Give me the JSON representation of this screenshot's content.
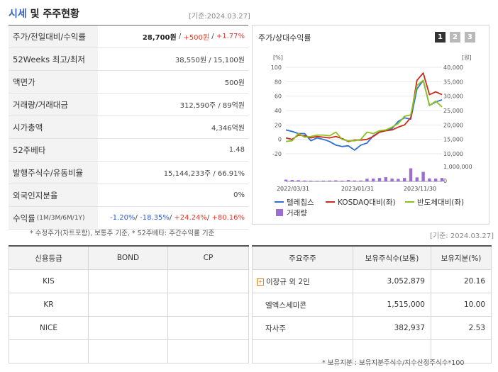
{
  "header": {
    "title_market": "시세",
    "title_rest": "및 주주현황",
    "base_date": "[기준:2024.03.27]"
  },
  "price_table": [
    {
      "label": "주가/전일대비/수익률",
      "parts": [
        {
          "t": "28,700원",
          "c": "bold"
        },
        {
          "t": " / ",
          "c": "sep"
        },
        {
          "t": "+500원",
          "c": "red"
        },
        {
          "t": " / ",
          "c": "sep"
        },
        {
          "t": "+1.77%",
          "c": "red"
        }
      ]
    },
    {
      "label": "52Weeks 최고/최저",
      "parts": [
        {
          "t": "38,550원 / 15,100원",
          "c": ""
        }
      ]
    },
    {
      "label": "액면가",
      "parts": [
        {
          "t": "500원",
          "c": ""
        }
      ]
    },
    {
      "label": "거래량/거래대금",
      "parts": [
        {
          "t": "312,590주 / 89억원",
          "c": ""
        }
      ]
    },
    {
      "label": "시가총액",
      "parts": [
        {
          "t": "4,346억원",
          "c": ""
        }
      ]
    },
    {
      "label": "52주베타",
      "parts": [
        {
          "t": "1.48",
          "c": ""
        }
      ]
    },
    {
      "label": "발행주식수/유동비율",
      "parts": [
        {
          "t": "15,144,233주 / 66.91%",
          "c": ""
        }
      ]
    },
    {
      "label": "외국인지분율",
      "parts": [
        {
          "t": "0%",
          "c": ""
        }
      ]
    },
    {
      "label": "수익률",
      "label_small": "(1M/3M/6M/1Y)",
      "parts": [
        {
          "t": "-1.20%",
          "c": "blue"
        },
        {
          "t": "/ ",
          "c": "sep"
        },
        {
          "t": "-18.35%",
          "c": "blue"
        },
        {
          "t": "/ ",
          "c": "sep"
        },
        {
          "t": "+24.24%",
          "c": "red"
        },
        {
          "t": "/ ",
          "c": "sep"
        },
        {
          "t": "+80.16%",
          "c": "red"
        }
      ]
    }
  ],
  "price_note": "* 수정주가(차트포함), 보통주 기준, * 52주베타: 주간수익률 기준",
  "chart_panel": {
    "title": "주가/상대수익률",
    "tabs": [
      "1",
      "2",
      "3"
    ],
    "active_tab": "1"
  },
  "chart_data": {
    "type": "line",
    "left_unit": "[%]",
    "right_unit": "[원]",
    "y_left_ticks": [
      "100",
      "80",
      "60",
      "40",
      "20",
      "0",
      "-20"
    ],
    "y_right_ticks": [
      "40,000",
      "35,000",
      "30,000",
      "25,000",
      "20,000",
      "15,000",
      "10,000"
    ],
    "y_volume_ticks": [
      "1,000,000",
      "0"
    ],
    "x_labels": [
      "2022/03/31",
      "2023/01/31",
      "2023/11/30"
    ],
    "ylim_left": [
      -20,
      100
    ],
    "ylim_volume": [
      0,
      1000000
    ],
    "series": [
      {
        "name": "텔레칩스",
        "color": "#2f6fd6",
        "values": [
          13,
          11,
          8,
          8,
          -2,
          2,
          0,
          -3,
          -8,
          -10,
          -9,
          -15,
          -8,
          -5,
          5,
          10,
          12,
          15,
          25,
          30,
          28,
          70,
          82,
          47,
          52,
          55
        ]
      },
      {
        "name": "KOSDAQ대비(좌)",
        "color": "#cc2a1a",
        "values": [
          2,
          0,
          6,
          5,
          2,
          4,
          3,
          2,
          4,
          1,
          -3,
          -1,
          -1,
          0,
          4,
          10,
          12,
          13,
          17,
          20,
          30,
          82,
          92,
          62,
          66,
          62
        ]
      },
      {
        "name": "반도체대비(좌)",
        "color": "#8cc21c",
        "values": [
          -3,
          -2,
          8,
          3,
          4,
          6,
          6,
          5,
          10,
          0,
          -2,
          -2,
          0,
          10,
          8,
          12,
          13,
          17,
          22,
          32,
          34,
          75,
          82,
          47,
          53,
          45
        ]
      }
    ],
    "volume": {
      "name": "거래량",
      "color": "#9b6fd1",
      "values": [
        120000,
        90000,
        80000,
        60000,
        50000,
        40000,
        50000,
        60000,
        70000,
        50000,
        90000,
        60000,
        60000,
        180000,
        190000,
        230000,
        280000,
        190000,
        170000,
        230000,
        880000,
        270000,
        640000,
        200000,
        190000,
        230000
      ]
    }
  },
  "credit_table": {
    "headers": [
      "신용등급",
      "BOND",
      "CP"
    ],
    "rows": [
      [
        "KIS",
        "",
        ""
      ],
      [
        "KR",
        "",
        ""
      ],
      [
        "NICE",
        "",
        ""
      ],
      [
        "",
        "",
        ""
      ]
    ]
  },
  "holders_table": {
    "headers": [
      "주요주주",
      "보유주식수(보통)",
      "보유지분(%)"
    ],
    "rows": [
      [
        "이장규 외 2인",
        "3,052,879",
        "20.16",
        true
      ],
      [
        "엘엑스세미콘",
        "1,515,000",
        "10.00",
        false
      ],
      [
        "자사주",
        "382,937",
        "2.53",
        false
      ],
      [
        "",
        "",
        "",
        false
      ]
    ],
    "base_date": "[기준: 2024.03.27]",
    "note": "* 보유지분 : 보유지분주식수/지수산정주식수*100"
  }
}
